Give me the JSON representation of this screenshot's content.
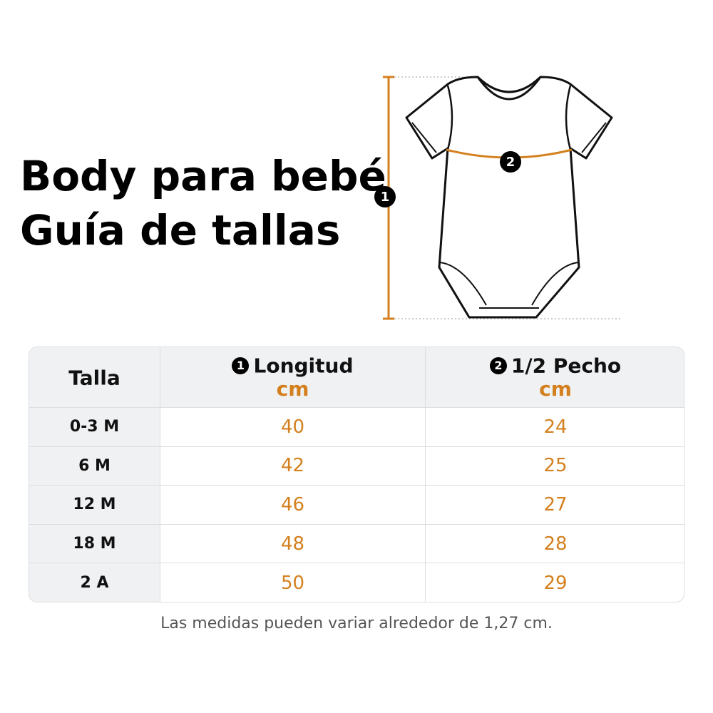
{
  "header": {
    "title_lines": [
      "Body para bebé",
      "Guía de tallas"
    ]
  },
  "diagram": {
    "markers": [
      "1",
      "2"
    ]
  },
  "table": {
    "columns": [
      {
        "label": "Talla"
      },
      {
        "marker": "1",
        "label": "Longitud",
        "unit": "cm"
      },
      {
        "marker": "2",
        "label": "1/2 Pecho",
        "unit": "cm"
      }
    ],
    "rows": [
      [
        "0-3 M",
        "40",
        "24"
      ],
      [
        "6 M",
        "42",
        "25"
      ],
      [
        "12 M",
        "46",
        "27"
      ],
      [
        "18 M",
        "48",
        "28"
      ],
      [
        "2 A",
        "50",
        "29"
      ]
    ]
  },
  "footnote": "Las medidas pueden variar alrededor de 1,27 cm."
}
